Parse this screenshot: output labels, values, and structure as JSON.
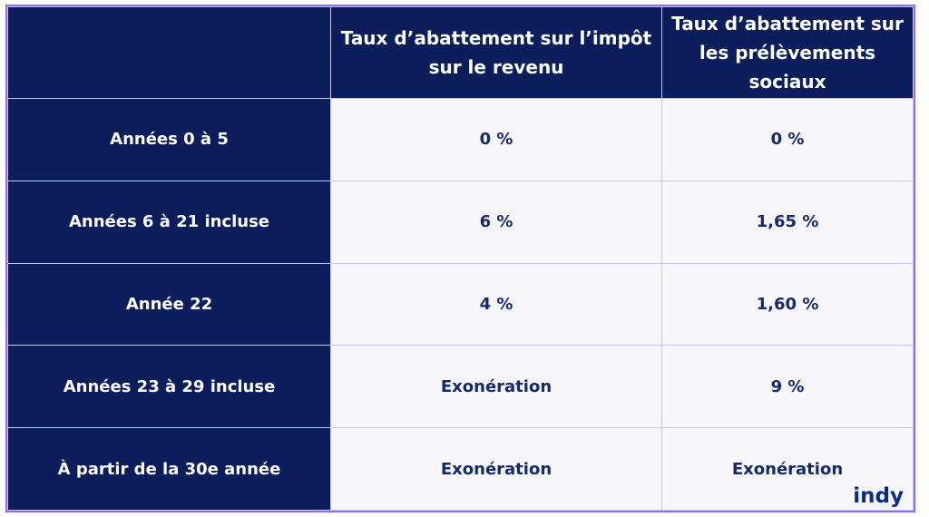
{
  "table": {
    "header": [
      "Taux d’abattement sur l’impôt sur le revenu",
      "Taux d’abattement sur les prélèvements sociaux"
    ],
    "rows": [
      [
        "Années 0 à 5",
        "0 %",
        "0 %"
      ],
      [
        "Années 6 à 21 incluse",
        "6 %",
        "1,65 %"
      ],
      [
        "Année 22",
        "4 %",
        "1,60 %"
      ],
      [
        "Années 23 à 29 incluse",
        "Exonération",
        "9 %"
      ],
      [
        "À partir de la 30e année",
        "Exonération",
        "Exonération"
      ]
    ]
  },
  "brand": "indy"
}
